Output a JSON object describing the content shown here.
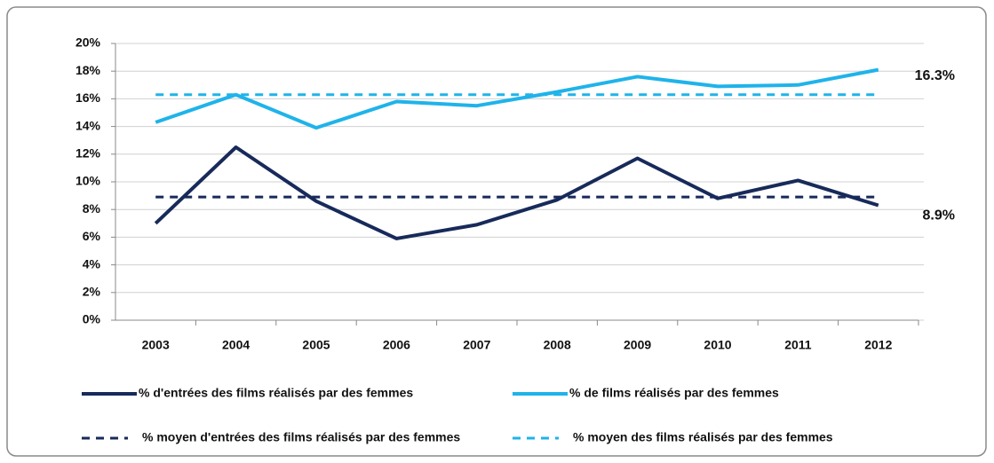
{
  "chart_data": {
    "type": "line",
    "categories": [
      "2003",
      "2004",
      "2005",
      "2006",
      "2007",
      "2008",
      "2009",
      "2010",
      "2011",
      "2012"
    ],
    "series": [
      {
        "name": "% d'entrées des films réalisés par des femmes",
        "color": "#172a5a",
        "dashed": false,
        "values": [
          7.0,
          12.5,
          8.6,
          5.9,
          6.9,
          8.7,
          11.7,
          8.8,
          10.1,
          8.3
        ]
      },
      {
        "name": "% de films réalisés par des femmes",
        "color": "#1fb3ea",
        "dashed": false,
        "values": [
          14.3,
          16.3,
          13.9,
          15.8,
          15.5,
          16.5,
          17.6,
          16.9,
          17.0,
          18.1
        ]
      },
      {
        "name": "% moyen d'entrées des films réalisés par des femmes",
        "color": "#172a5a",
        "dashed": true,
        "values": [
          8.9,
          8.9,
          8.9,
          8.9,
          8.9,
          8.9,
          8.9,
          8.9,
          8.9,
          8.9
        ]
      },
      {
        "name": "% moyen des films réalisés par des femmes",
        "color": "#1fb3ea",
        "dashed": true,
        "values": [
          16.3,
          16.3,
          16.3,
          16.3,
          16.3,
          16.3,
          16.3,
          16.3,
          16.3,
          16.3
        ]
      }
    ],
    "annotations": [
      {
        "text": "16.3%",
        "series": 3
      },
      {
        "text": "8.9%",
        "series": 2
      }
    ],
    "ylim": [
      0,
      20
    ],
    "yticks": [
      {
        "value": 0,
        "label": "0%"
      },
      {
        "value": 2,
        "label": "2%"
      },
      {
        "value": 4,
        "label": "4%"
      },
      {
        "value": 6,
        "label": "6%"
      },
      {
        "value": 8,
        "label": "8%"
      },
      {
        "value": 10,
        "label": "10%"
      },
      {
        "value": 12,
        "label": "12%"
      },
      {
        "value": 14,
        "label": "14%"
      },
      {
        "value": 16,
        "label": "16%"
      },
      {
        "value": 18,
        "label": "18%"
      },
      {
        "value": 20,
        "label": "20%"
      }
    ],
    "grid": true
  }
}
